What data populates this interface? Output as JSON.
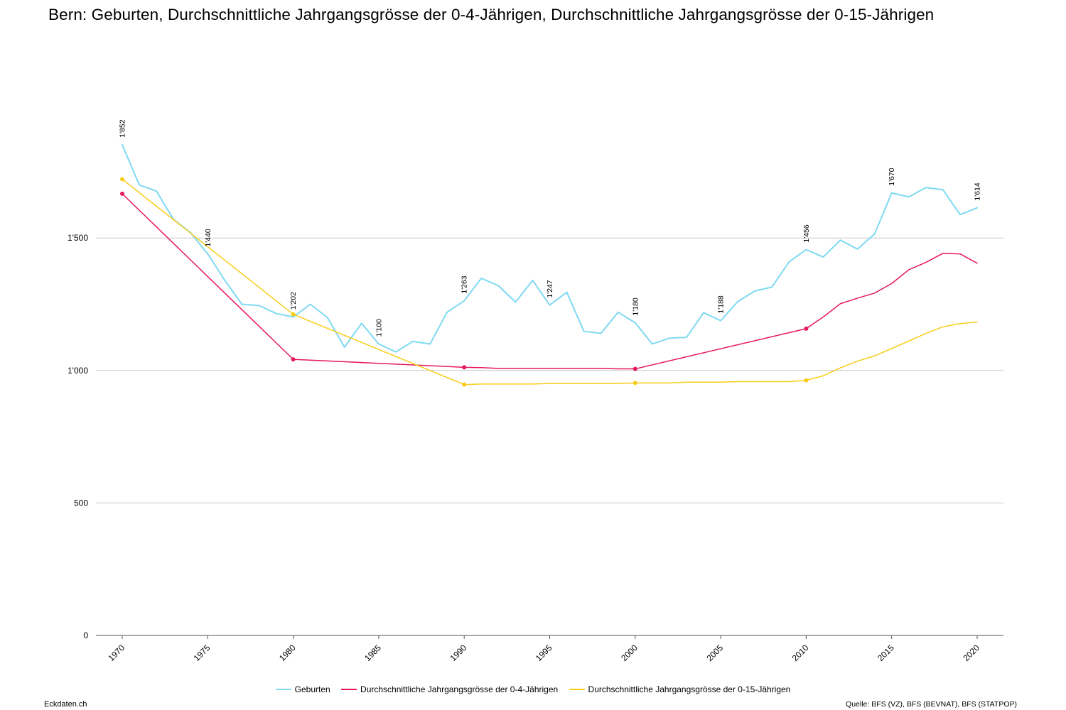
{
  "title": "Bern: Geburten, Durchschnittliche Jahrgangsgrösse der 0-4-Jährigen, Durchschnittliche Jahrgangsgrösse der 0-15-Jährigen",
  "footer": {
    "left": "Eckdaten.ch",
    "right": "Quelle: BFS (VZ), BFS (BEVNAT), BFS (STATPOP)"
  },
  "colors": {
    "geburten": "#7fd9f2",
    "jg04": "#e5175c",
    "jg015": "#f7cd1a",
    "grid": "#c8c8c8",
    "axis": "#555555"
  },
  "chart_data": {
    "type": "line",
    "x_ticks": [
      1970,
      1975,
      1980,
      1985,
      1990,
      1995,
      2000,
      2005,
      2010,
      2015,
      2020
    ],
    "x_tick_labels": [
      "1970",
      "1975",
      "1980",
      "1985",
      "1990",
      "1995",
      "2000",
      "2005",
      "2010",
      "2015",
      "2020"
    ],
    "xlim": [
      1970,
      2020
    ],
    "ylim": [
      0,
      2000
    ],
    "y_ticks": [
      0,
      500,
      1000,
      1500
    ],
    "y_tick_labels": [
      "0",
      "500",
      "1'000",
      "1'500"
    ],
    "grid": true,
    "legend_position": "bottom-center",
    "series": [
      {
        "name": "Geburten",
        "key": "geburten",
        "width": 2,
        "x": [
          1970,
          1971,
          1972,
          1973,
          1974,
          1975,
          1976,
          1977,
          1978,
          1979,
          1980,
          1981,
          1982,
          1983,
          1984,
          1985,
          1986,
          1987,
          1988,
          1989,
          1990,
          1991,
          1992,
          1993,
          1994,
          1995,
          1996,
          1997,
          1998,
          1999,
          2000,
          2001,
          2002,
          2003,
          2004,
          2005,
          2006,
          2007,
          2008,
          2009,
          2010,
          2011,
          2012,
          2013,
          2014,
          2015,
          2016,
          2017,
          2018,
          2019,
          2020
        ],
        "values": [
          1852,
          1700,
          1677,
          1570,
          1520,
          1440,
          1340,
          1250,
          1245,
          1215,
          1202,
          1250,
          1200,
          1088,
          1178,
          1100,
          1070,
          1110,
          1100,
          1220,
          1263,
          1348,
          1320,
          1258,
          1340,
          1247,
          1295,
          1148,
          1140,
          1220,
          1180,
          1100,
          1122,
          1125,
          1218,
          1188,
          1260,
          1300,
          1315,
          1410,
          1456,
          1428,
          1492,
          1458,
          1515,
          1670,
          1655,
          1690,
          1682,
          1588,
          1614
        ],
        "labels": [
          {
            "x": 1970,
            "text": "1'852"
          },
          {
            "x": 1975,
            "text": "1'440"
          },
          {
            "x": 1980,
            "text": "1'202"
          },
          {
            "x": 1985,
            "text": "1'100"
          },
          {
            "x": 1990,
            "text": "1'263"
          },
          {
            "x": 1995,
            "text": "1'247"
          },
          {
            "x": 2000,
            "text": "1'180"
          },
          {
            "x": 2005,
            "text": "1'188"
          },
          {
            "x": 2010,
            "text": "1'456"
          },
          {
            "x": 2015,
            "text": "1'670"
          },
          {
            "x": 2020,
            "text": "1'614"
          }
        ]
      },
      {
        "name": "Durchschnittliche Jahrgangsgrösse der 0-4-Jährigen",
        "key": "jg04",
        "width": 1.5,
        "x": [
          1970,
          1980,
          1990,
          1991,
          1992,
          1993,
          1994,
          1995,
          1996,
          1997,
          1998,
          1999,
          2000,
          2010,
          2011,
          2012,
          2013,
          2014,
          2015,
          2016,
          2017,
          2018,
          2019,
          2020
        ],
        "values": [
          1667,
          1042,
          1012,
          1011,
          1008,
          1008,
          1008,
          1008,
          1008,
          1008,
          1008,
          1006,
          1006,
          1158,
          1202,
          1252,
          1273,
          1292,
          1328,
          1380,
          1408,
          1442,
          1440,
          1405
        ],
        "markers": [
          1970,
          1980,
          1990,
          2000,
          2010
        ]
      },
      {
        "name": "Durchschnittliche Jahrgangsgrösse der 0-15-Jährigen",
        "key": "jg015",
        "width": 1.5,
        "x": [
          1970,
          1980,
          1990,
          1991,
          1992,
          1993,
          1994,
          1995,
          1996,
          1997,
          1998,
          1999,
          2000,
          2001,
          2002,
          2003,
          2004,
          2005,
          2006,
          2007,
          2008,
          2009,
          2010,
          2011,
          2012,
          2013,
          2014,
          2015,
          2016,
          2017,
          2018,
          2019,
          2020
        ],
        "values": [
          1722,
          1212,
          947,
          949,
          949,
          949,
          949,
          951,
          951,
          951,
          951,
          951,
          953,
          953,
          953,
          956,
          956,
          956,
          958,
          958,
          958,
          958,
          963,
          980,
          1010,
          1035,
          1055,
          1083,
          1111,
          1140,
          1165,
          1177,
          1183
        ],
        "markers": [
          1970,
          1980,
          1990,
          2000,
          2010
        ]
      }
    ]
  }
}
